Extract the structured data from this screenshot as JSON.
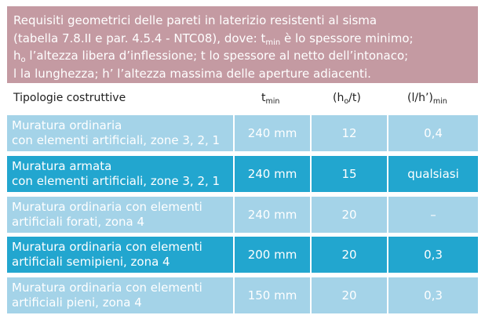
{
  "caption": {
    "line1": "Requisiti geometrici delle pareti in laterizio resistenti al sisma",
    "line2_a": "(tabella 7.8.II e par. 4.5.4 - NTC08), dove: t",
    "line2_sub": "min",
    "line2_b": " è lo spessore minimo;",
    "line3_a": "h",
    "line3_sub": "o",
    "line3_b": " l’altezza libera d’inflessione; t lo spessore al netto dell’intonaco;",
    "line4": "l la lunghezza; h’ l’altezza massima delle aperture adiacenti."
  },
  "header": {
    "col1": "Tipologie costruttive",
    "col2_main": "t",
    "col2_sub": "min",
    "col3_a": "(h",
    "col3_sub": "o",
    "col3_b": "/t)",
    "col4_main": "(l/h’)",
    "col4_sub": "min"
  },
  "rows": [
    {
      "line1": "Muratura ordinaria",
      "line2": "con elementi artificiali, zone 3, 2, 1",
      "tmin": "240 mm",
      "ho_t": "12",
      "l_h": "0,4"
    },
    {
      "line1": "Muratura armata",
      "line2": "con elementi artificiali, zone 3, 2, 1",
      "tmin": "240 mm",
      "ho_t": "15",
      "l_h": "qualsiasi"
    },
    {
      "line1": "Muratura ordinaria con elementi",
      "line2": "artificiali forati, zona 4",
      "tmin": "240 mm",
      "ho_t": "20",
      "l_h": "–"
    },
    {
      "line1": "Muratura ordinaria con elementi",
      "line2": "artificiali semipieni, zona 4",
      "tmin": "200 mm",
      "ho_t": "20",
      "l_h": "0,3"
    },
    {
      "line1": "Muratura ordinaria con elementi",
      "line2": "artificiali pieni, zona 4",
      "tmin": "150 mm",
      "ho_t": "20",
      "l_h": "0,3"
    }
  ],
  "colors": {
    "caption_bg": "#c49aa2",
    "row_light": "#a4d3e8",
    "row_dark": "#22a6cf"
  }
}
